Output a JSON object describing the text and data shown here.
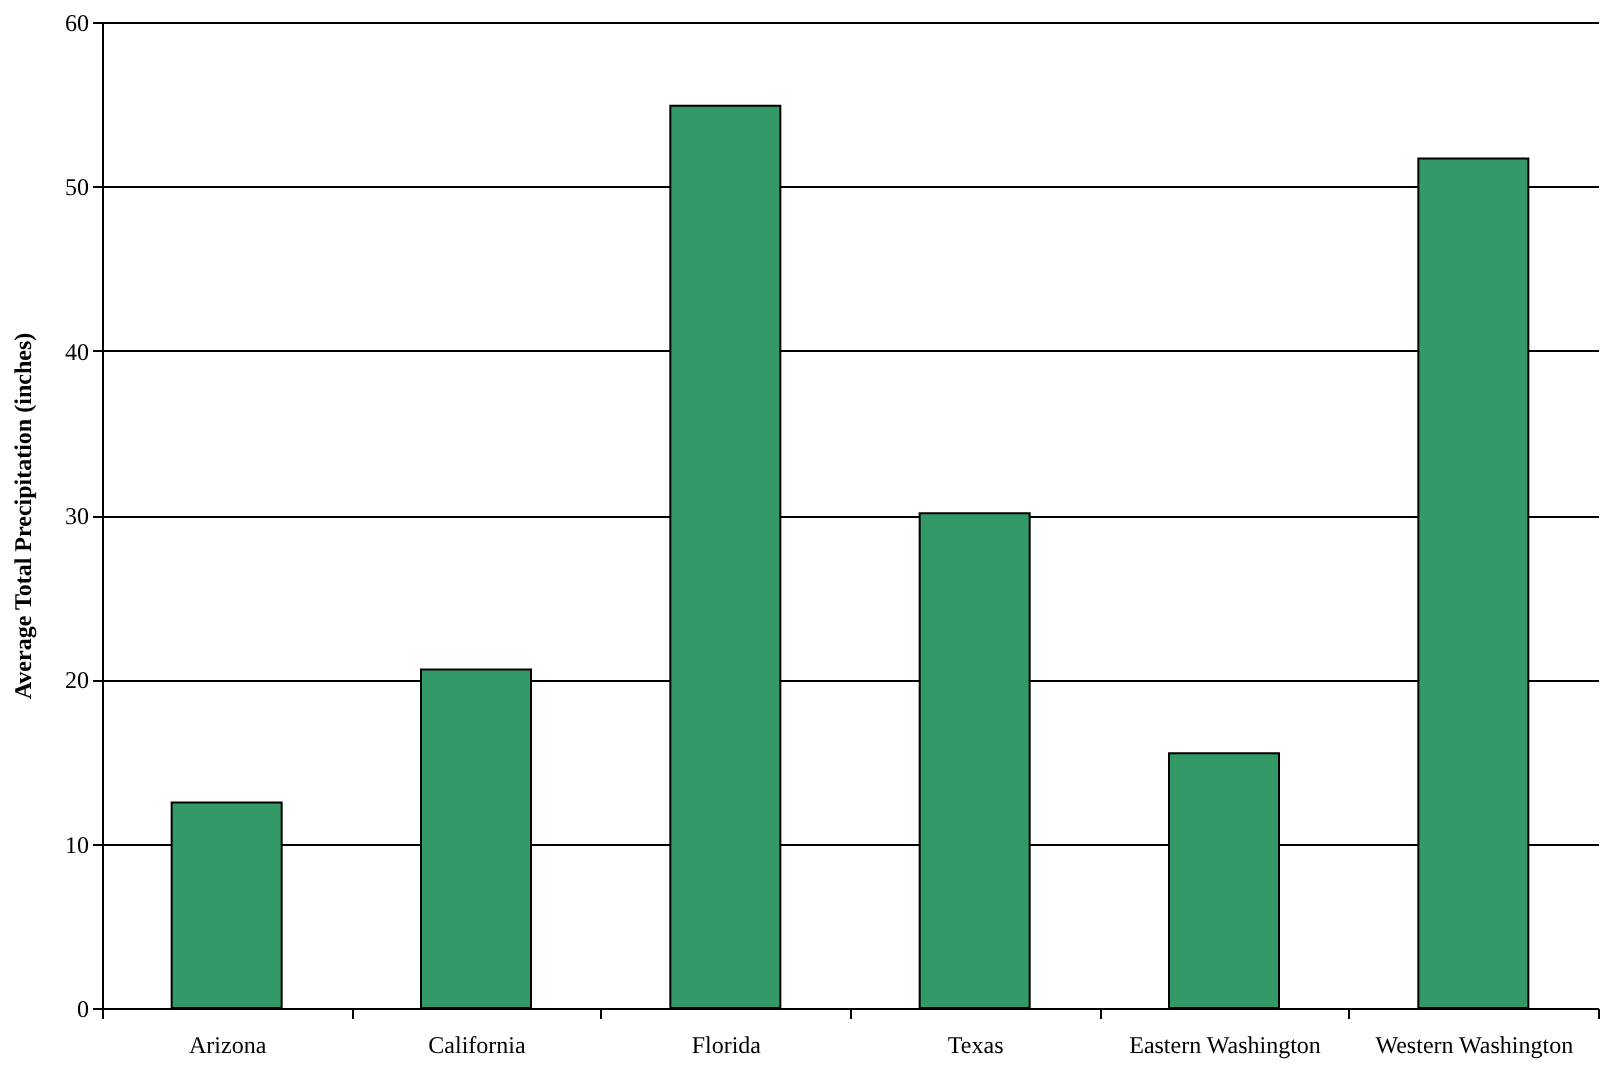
{
  "chart_data": {
    "type": "bar",
    "ylabel": "Average Total Precipitation (inches)",
    "categories": [
      "Arizona",
      "California",
      "Florida",
      "Texas",
      "Eastern Washington",
      "Western Washington"
    ],
    "values": [
      12.5,
      20.6,
      54.9,
      30.1,
      15.5,
      51.7
    ],
    "color": "#339966",
    "ylim": [
      0,
      60
    ],
    "yticks": [
      0,
      10,
      20,
      30,
      40,
      50,
      60
    ],
    "grid": "y"
  }
}
